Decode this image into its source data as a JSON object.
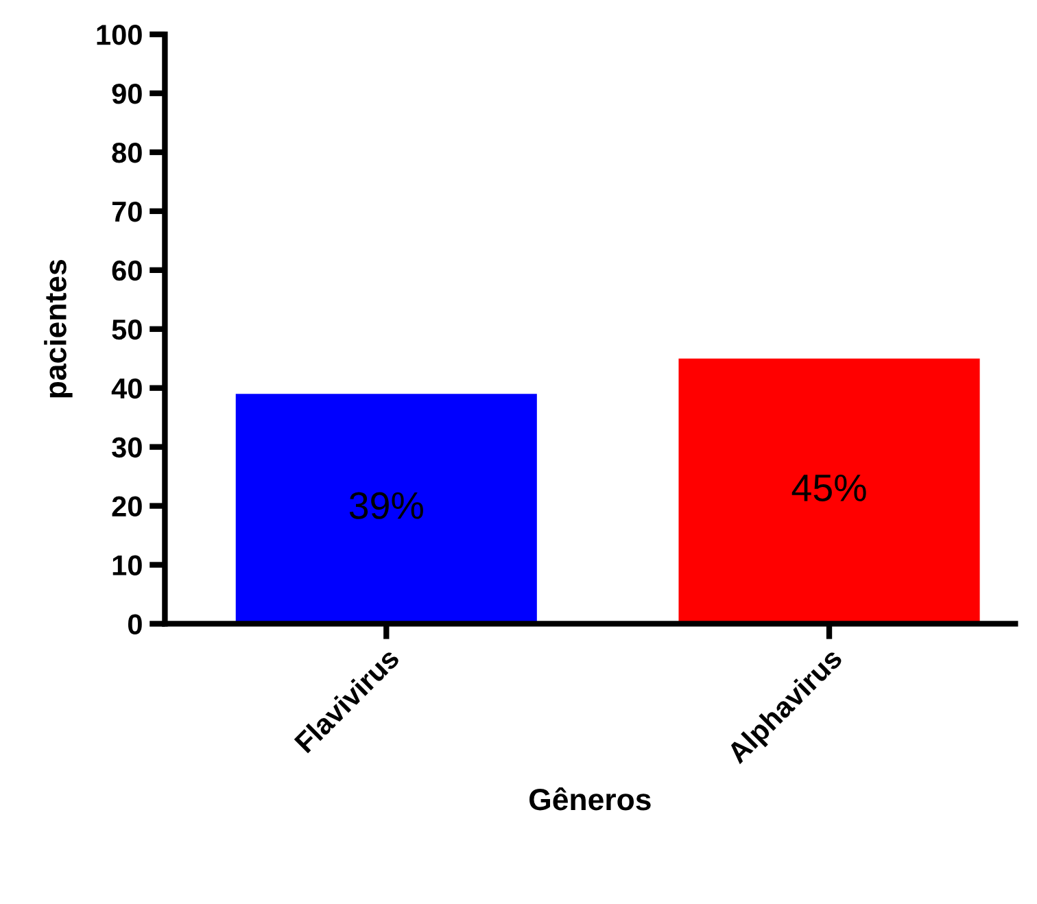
{
  "chart_data": {
    "type": "bar",
    "xlabel": "Gêneros",
    "ylabel": "pacientes",
    "categories": [
      "Flavivirus",
      "Alphavirus"
    ],
    "values": [
      39,
      45
    ],
    "colors": [
      "#0000ff",
      "#ff0000"
    ],
    "value_labels": [
      "39%",
      "45%"
    ],
    "ylim": [
      0,
      100
    ],
    "yticks": [
      0,
      10,
      20,
      30,
      40,
      50,
      60,
      70,
      80,
      90,
      100
    ],
    "grid": false
  }
}
